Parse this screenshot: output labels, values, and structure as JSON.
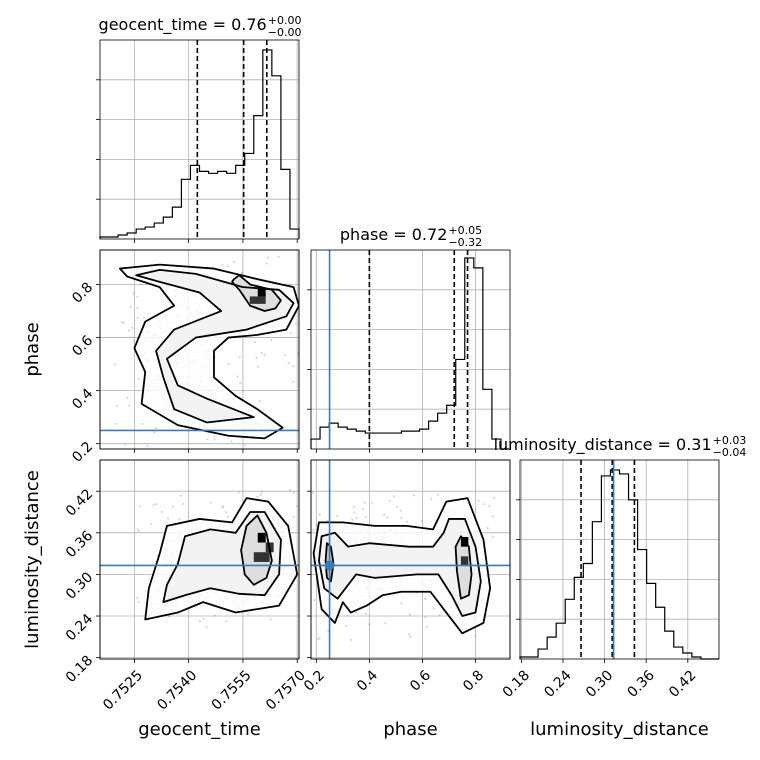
{
  "chart_data": {
    "type": "corner",
    "parameters": [
      "geocent_time",
      "phase",
      "luminosity_distance"
    ],
    "titles": [
      {
        "param": "geocent_time",
        "base": "geocent_time = 0.76",
        "sup": "+0.00",
        "sub": "−0.00"
      },
      {
        "param": "phase",
        "base": "phase = 0.72",
        "sup": "+0.05",
        "sub": "−0.32"
      },
      {
        "param": "luminosity_distance",
        "base": "luminosity_distance = 0.31",
        "sup": "+0.03",
        "sub": "−0.04"
      }
    ],
    "axis_labels": {
      "x": [
        "geocent_time",
        "phase",
        "luminosity_distance"
      ],
      "y": [
        "phase",
        "luminosity_distance"
      ]
    },
    "ranges": {
      "geocent_time": [
        0.75155,
        0.75705
      ],
      "phase": [
        0.18,
        0.93
      ],
      "luminosity_distance": [
        0.178,
        0.465
      ]
    },
    "ticks": {
      "geocent_time": {
        "values": [
          0.7525,
          0.754,
          0.7555,
          0.757
        ],
        "labels": [
          "0.7525",
          "0.7540",
          "0.7555",
          "0.7570"
        ]
      },
      "phase": {
        "values": [
          0.2,
          0.4,
          0.6,
          0.8
        ],
        "labels": [
          "0.2",
          "0.4",
          "0.6",
          "0.8"
        ]
      },
      "luminosity_distance": {
        "values": [
          0.18,
          0.24,
          0.3,
          0.36,
          0.42
        ],
        "labels": [
          "0.18",
          "0.24",
          "0.30",
          "0.36",
          "0.42"
        ]
      }
    },
    "truths": {
      "phase": 0.25,
      "luminosity_distance": 0.313
    },
    "quantiles": {
      "geocent_time": [
        0.75424,
        0.75552,
        0.75616
      ],
      "phase": [
        0.4,
        0.72,
        0.77
      ],
      "luminosity_distance": [
        0.266,
        0.311,
        0.343
      ]
    },
    "hist_max": {
      "geocent_time": 0.95,
      "phase": 0.96,
      "luminosity_distance": 0.95
    },
    "histograms": {
      "geocent_time": [
        0.01,
        0.01,
        0.02,
        0.03,
        0.05,
        0.06,
        0.08,
        0.11,
        0.16,
        0.3,
        0.37,
        0.34,
        0.33,
        0.34,
        0.33,
        0.37,
        0.43,
        0.62,
        0.95,
        0.82,
        0.35,
        0.05
      ],
      "phase": [
        0.05,
        0.11,
        0.13,
        0.11,
        0.1,
        0.09,
        0.08,
        0.08,
        0.08,
        0.08,
        0.09,
        0.09,
        0.1,
        0.14,
        0.18,
        0.22,
        0.45,
        0.96,
        0.91,
        0.3,
        0.05,
        0.0
      ],
      "luminosity_distance": [
        0.01,
        0.01,
        0.05,
        0.11,
        0.18,
        0.3,
        0.41,
        0.48,
        0.69,
        0.92,
        0.95,
        0.93,
        0.8,
        0.55,
        0.38,
        0.26,
        0.14,
        0.06,
        0.03,
        0.01,
        0.0,
        0.0
      ]
    },
    "contours": {
      "geocent_time_phase": [
        {
          "level": "39%",
          "points": [
            [
              0.75525,
              0.82
            ],
            [
              0.7554,
              0.835
            ],
            [
              0.7557,
              0.8
            ],
            [
              0.7563,
              0.78
            ],
            [
              0.75655,
              0.74
            ],
            [
              0.7564,
              0.71
            ],
            [
              0.7561,
              0.7
            ],
            [
              0.7557,
              0.72
            ],
            [
              0.7554,
              0.78
            ],
            [
              0.7552,
              0.81
            ]
          ]
        },
        {
          "level": "86%",
          "points": [
            [
              0.75255,
              0.835
            ],
            [
              0.7532,
              0.855
            ],
            [
              0.7542,
              0.84
            ],
            [
              0.7555,
              0.79
            ],
            [
              0.7565,
              0.78
            ],
            [
              0.7569,
              0.73
            ],
            [
              0.7567,
              0.68
            ],
            [
              0.7556,
              0.63
            ],
            [
              0.7542,
              0.6
            ],
            [
              0.7534,
              0.52
            ],
            [
              0.7537,
              0.42
            ],
            [
              0.7545,
              0.37
            ],
            [
              0.7558,
              0.3
            ],
            [
              0.7545,
              0.28
            ],
            [
              0.7536,
              0.33
            ],
            [
              0.7533,
              0.45
            ],
            [
              0.7531,
              0.55
            ],
            [
              0.7536,
              0.63
            ],
            [
              0.7549,
              0.7
            ],
            [
              0.7543,
              0.77
            ],
            [
              0.7532,
              0.81
            ]
          ]
        },
        {
          "level": "99%",
          "points": [
            [
              0.7521,
              0.86
            ],
            [
              0.7532,
              0.875
            ],
            [
              0.7547,
              0.86
            ],
            [
              0.7559,
              0.82
            ],
            [
              0.7569,
              0.79
            ],
            [
              0.75705,
              0.72
            ],
            [
              0.7567,
              0.63
            ],
            [
              0.7559,
              0.61
            ],
            [
              0.7551,
              0.6
            ],
            [
              0.7547,
              0.55
            ],
            [
              0.7547,
              0.45
            ],
            [
              0.7553,
              0.38
            ],
            [
              0.7559,
              0.33
            ],
            [
              0.7566,
              0.26
            ],
            [
              0.7561,
              0.22
            ],
            [
              0.7551,
              0.23
            ],
            [
              0.7537,
              0.27
            ],
            [
              0.7527,
              0.35
            ],
            [
              0.7528,
              0.47
            ],
            [
              0.7525,
              0.56
            ],
            [
              0.7528,
              0.66
            ],
            [
              0.7536,
              0.72
            ],
            [
              0.7532,
              0.79
            ],
            [
              0.7523,
              0.83
            ]
          ]
        }
      ],
      "geocent_time_luminosity_distance": [
        {
          "level": "39%",
          "points": [
            [
              0.75545,
              0.335
            ],
            [
              0.7556,
              0.37
            ],
            [
              0.7559,
              0.385
            ],
            [
              0.75615,
              0.36
            ],
            [
              0.7563,
              0.32
            ],
            [
              0.75615,
              0.295
            ],
            [
              0.7558,
              0.285
            ],
            [
              0.75555,
              0.3
            ]
          ]
        },
        {
          "level": "86%",
          "points": [
            [
              0.7537,
              0.315
            ],
            [
              0.7539,
              0.355
            ],
            [
              0.7546,
              0.365
            ],
            [
              0.7553,
              0.36
            ],
            [
              0.7557,
              0.39
            ],
            [
              0.7561,
              0.39
            ],
            [
              0.75655,
              0.35
            ],
            [
              0.7565,
              0.3
            ],
            [
              0.7561,
              0.27
            ],
            [
              0.7554,
              0.272
            ],
            [
              0.7546,
              0.28
            ],
            [
              0.7539,
              0.27
            ],
            [
              0.7533,
              0.26
            ],
            [
              0.7534,
              0.285
            ]
          ]
        },
        {
          "level": "99%",
          "points": [
            [
              0.7532,
              0.33
            ],
            [
              0.7534,
              0.37
            ],
            [
              0.7543,
              0.38
            ],
            [
              0.7552,
              0.375
            ],
            [
              0.7556,
              0.41
            ],
            [
              0.7562,
              0.405
            ],
            [
              0.75675,
              0.37
            ],
            [
              0.757,
              0.3
            ],
            [
              0.7565,
              0.255
            ],
            [
              0.7553,
              0.245
            ],
            [
              0.7544,
              0.26
            ],
            [
              0.7537,
              0.245
            ],
            [
              0.7528,
              0.235
            ],
            [
              0.7529,
              0.28
            ]
          ]
        }
      ],
      "phase_luminosity_distance": [
        {
          "level": "39%a",
          "points": [
            [
              0.235,
              0.32
            ],
            [
              0.24,
              0.345
            ],
            [
              0.255,
              0.34
            ],
            [
              0.265,
              0.315
            ],
            [
              0.255,
              0.29
            ],
            [
              0.24,
              0.295
            ]
          ]
        },
        {
          "level": "39%b",
          "points": [
            [
              0.73,
              0.305
            ],
            [
              0.725,
              0.34
            ],
            [
              0.745,
              0.355
            ],
            [
              0.775,
              0.34
            ],
            [
              0.785,
              0.3
            ],
            [
              0.775,
              0.27
            ],
            [
              0.745,
              0.265
            ]
          ]
        },
        {
          "level": "86%",
          "points": [
            [
              0.21,
              0.32
            ],
            [
              0.22,
              0.355
            ],
            [
              0.27,
              0.36
            ],
            [
              0.32,
              0.34
            ],
            [
              0.4,
              0.345
            ],
            [
              0.55,
              0.34
            ],
            [
              0.64,
              0.34
            ],
            [
              0.68,
              0.36
            ],
            [
              0.7,
              0.38
            ],
            [
              0.76,
              0.38
            ],
            [
              0.8,
              0.34
            ],
            [
              0.82,
              0.29
            ],
            [
              0.8,
              0.245
            ],
            [
              0.75,
              0.24
            ],
            [
              0.71,
              0.27
            ],
            [
              0.66,
              0.3
            ],
            [
              0.58,
              0.3
            ],
            [
              0.42,
              0.295
            ],
            [
              0.35,
              0.3
            ],
            [
              0.28,
              0.265
            ],
            [
              0.23,
              0.28
            ]
          ]
        },
        {
          "level": "99%",
          "points": [
            [
              0.19,
              0.33
            ],
            [
              0.21,
              0.375
            ],
            [
              0.3,
              0.375
            ],
            [
              0.42,
              0.37
            ],
            [
              0.54,
              0.37
            ],
            [
              0.64,
              0.365
            ],
            [
              0.69,
              0.405
            ],
            [
              0.77,
              0.41
            ],
            [
              0.83,
              0.35
            ],
            [
              0.855,
              0.28
            ],
            [
              0.83,
              0.23
            ],
            [
              0.75,
              0.215
            ],
            [
              0.69,
              0.245
            ],
            [
              0.63,
              0.275
            ],
            [
              0.52,
              0.275
            ],
            [
              0.45,
              0.27
            ],
            [
              0.39,
              0.255
            ],
            [
              0.33,
              0.245
            ],
            [
              0.3,
              0.26
            ],
            [
              0.27,
              0.23
            ],
            [
              0.22,
              0.25
            ]
          ]
        }
      ]
    },
    "density_cores": {
      "geocent_time_phase": [
        {
          "x": 0.75591,
          "y": 0.755,
          "w": 0.00022,
          "h": 0.028
        },
        {
          "x": 0.75569,
          "y": 0.727,
          "w": 0.00044,
          "h": 0.028
        }
      ],
      "geocent_time_luminosity_distance": [
        {
          "x": 0.75591,
          "y": 0.346,
          "w": 0.00022,
          "h": 0.014
        },
        {
          "x": 0.75613,
          "y": 0.332,
          "w": 0.00022,
          "h": 0.014
        },
        {
          "x": 0.7558,
          "y": 0.318,
          "w": 0.00044,
          "h": 0.014
        }
      ],
      "phase_luminosity_distance": [
        {
          "x": 0.745,
          "y": 0.34,
          "w": 0.028,
          "h": 0.014
        },
        {
          "x": 0.745,
          "y": 0.312,
          "w": 0.028,
          "h": 0.014
        }
      ]
    }
  }
}
